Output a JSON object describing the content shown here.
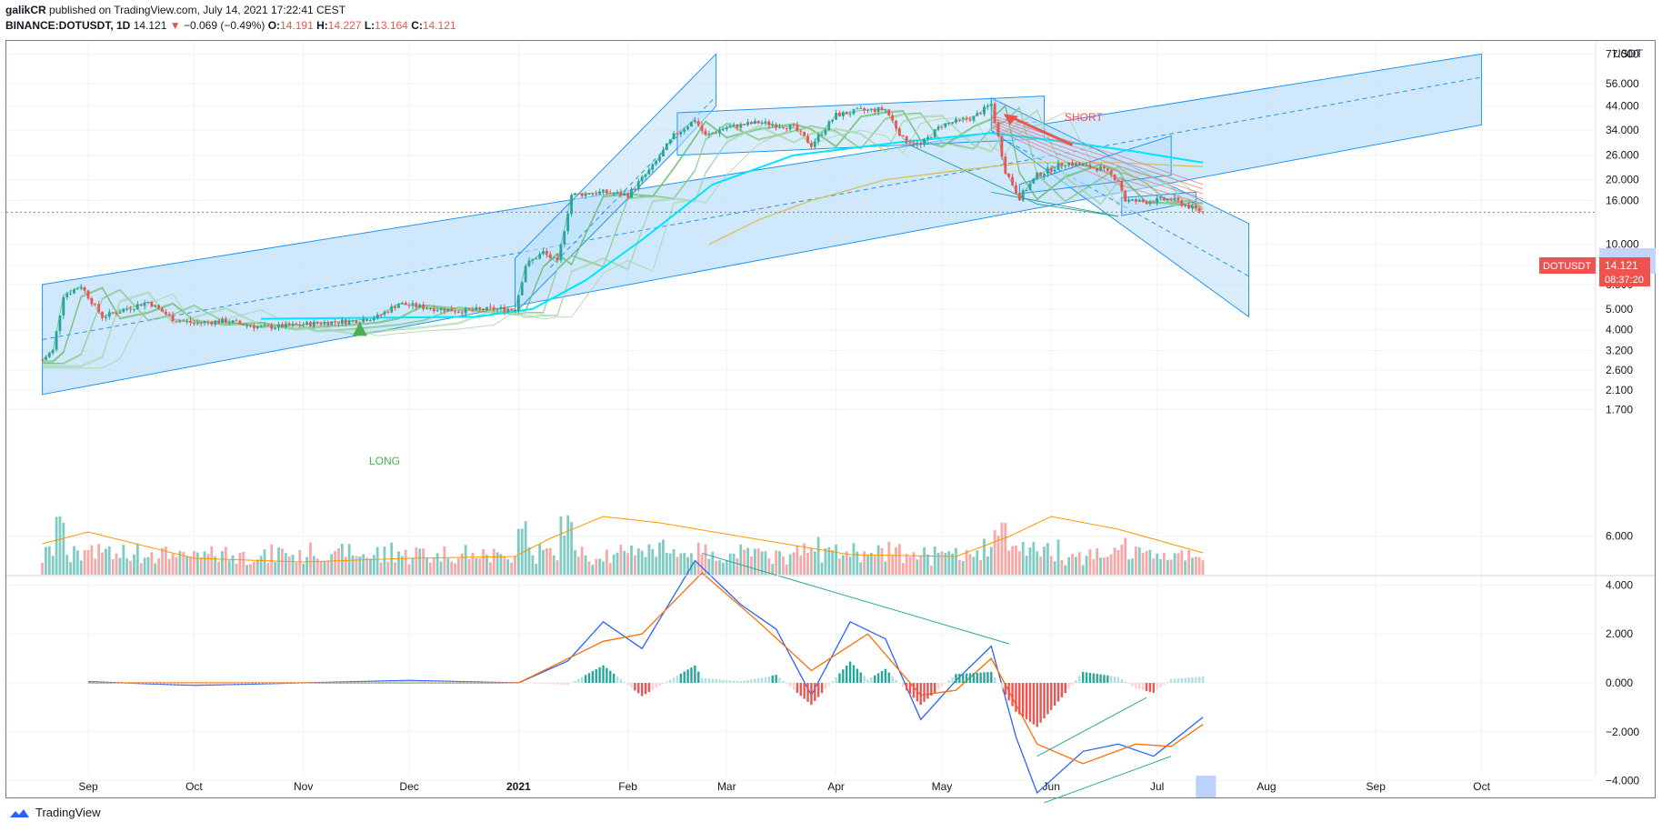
{
  "header": {
    "author": "galikCR",
    "published_text": "published on TradingView.com, July 14, 2021 17:22:41 CEST",
    "symbol": "BINANCE:DOTUSDT, 1D",
    "last": "14.121",
    "change": "−0.069 (−0.49%)",
    "o_label": "O:",
    "o": "14.191",
    "h_label": "H:",
    "h": "14.227",
    "l_label": "L:",
    "l": "13.164",
    "c_label": "C:",
    "c": "14.121"
  },
  "price_label": {
    "symbol": "DOTUSDT",
    "price": "14.121",
    "countdown": "08:37:20"
  },
  "annotations": {
    "long": "LONG",
    "short": "SHORT"
  },
  "footer": {
    "brand": "TradingView"
  },
  "colors": {
    "up": "#26a69a",
    "down": "#ef5350",
    "channel_fill": "#bbdefb",
    "channel_line": "#2196f3",
    "ema_cyan": "#00e5ff",
    "ma_yellow": "#d4c05a",
    "macd": "#2962ff",
    "signal": "#ff6d00",
    "volume_ma": "#ff9800"
  },
  "chart_data": [
    {
      "type": "candlestick",
      "title": "BINANCE:DOTUSDT, 1D",
      "y_unit": "USDT",
      "y_scale": "log",
      "ylim": [
        1.5,
        77
      ],
      "y_ticks": [
        "77.000",
        "56.000",
        "44.000",
        "34.000",
        "26.000",
        "20.000",
        "16.000",
        "10.000",
        "8.000",
        "6.500",
        "5.000",
        "4.000",
        "3.200",
        "2.600",
        "2.100",
        "1.700"
      ],
      "x_ticks": [
        "Sep",
        "Oct",
        "Nov",
        "Dec",
        "2021",
        "Feb",
        "Mar",
        "Apr",
        "May",
        "Jun",
        "Jul",
        "Aug",
        "Sep",
        "Oct"
      ],
      "close_path": [
        [
          "2020-08-19",
          2.9
        ],
        [
          "2020-08-22",
          3.2
        ],
        [
          "2020-08-25",
          5.8
        ],
        [
          "2020-08-30",
          6.4
        ],
        [
          "2020-09-05",
          4.6
        ],
        [
          "2020-09-10",
          4.9
        ],
        [
          "2020-09-18",
          5.4
        ],
        [
          "2020-09-25",
          4.5
        ],
        [
          "2020-10-01",
          4.3
        ],
        [
          "2020-10-10",
          4.4
        ],
        [
          "2020-10-20",
          4.1
        ],
        [
          "2020-10-30",
          4.2
        ],
        [
          "2020-11-05",
          4.3
        ],
        [
          "2020-11-15",
          4.4
        ],
        [
          "2020-11-22",
          4.6
        ],
        [
          "2020-11-28",
          5.3
        ],
        [
          "2020-12-05",
          5.1
        ],
        [
          "2020-12-15",
          4.9
        ],
        [
          "2020-12-25",
          5.0
        ],
        [
          "2020-12-31",
          5.0
        ],
        [
          "2021-01-03",
          8.0
        ],
        [
          "2021-01-08",
          9.2
        ],
        [
          "2021-01-12",
          8.2
        ],
        [
          "2021-01-16",
          17.0
        ],
        [
          "2021-01-25",
          17.5
        ],
        [
          "2021-02-01",
          17.0
        ],
        [
          "2021-02-08",
          23.0
        ],
        [
          "2021-02-14",
          32.0
        ],
        [
          "2021-02-20",
          38.0
        ],
        [
          "2021-02-23",
          32.0
        ],
        [
          "2021-03-01",
          35.0
        ],
        [
          "2021-03-10",
          37.0
        ],
        [
          "2021-03-20",
          35.0
        ],
        [
          "2021-03-25",
          29.0
        ],
        [
          "2021-04-01",
          40.0
        ],
        [
          "2021-04-08",
          42.0
        ],
        [
          "2021-04-15",
          42.5
        ],
        [
          "2021-04-20",
          31.0
        ],
        [
          "2021-04-25",
          29.0
        ],
        [
          "2021-05-01",
          36.0
        ],
        [
          "2021-05-10",
          39.0
        ],
        [
          "2021-05-15",
          45.0
        ],
        [
          "2021-05-19",
          22.0
        ],
        [
          "2021-05-23",
          16.5
        ],
        [
          "2021-05-28",
          21.0
        ],
        [
          "2021-06-05",
          24.0
        ],
        [
          "2021-06-15",
          22.5
        ],
        [
          "2021-06-20",
          20.0
        ],
        [
          "2021-06-22",
          16.0
        ],
        [
          "2021-06-28",
          15.8
        ],
        [
          "2021-07-05",
          16.3
        ],
        [
          "2021-07-10",
          15.0
        ],
        [
          "2021-07-14",
          14.121
        ]
      ]
    },
    {
      "type": "bar",
      "title": "Volume",
      "note": "volume histogram with moving average; no value scale printed"
    },
    {
      "type": "line",
      "title": "MACD",
      "ylim": [
        -5,
        6.5
      ],
      "y_ticks": [
        "6.000",
        "4.000",
        "2.000",
        "0.000",
        "−2.000",
        "−4.000"
      ],
      "series": [
        {
          "points": [
            [
              "2020-09-01",
              0.05
            ],
            [
              "2020-10-01",
              -0.1
            ],
            [
              "2020-11-01",
              0.0
            ],
            [
              "2020-12-01",
              0.1
            ],
            [
              "2021-01-01",
              0.0
            ],
            [
              "2021-01-15",
              0.9
            ],
            [
              "2021-01-25",
              2.5
            ],
            [
              "2021-02-05",
              1.4
            ],
            [
              "2021-02-20",
              5.0
            ],
            [
              "2021-03-05",
              3.2
            ],
            [
              "2021-03-15",
              2.2
            ],
            [
              "2021-03-25",
              -0.5
            ],
            [
              "2021-04-05",
              2.5
            ],
            [
              "2021-04-15",
              1.8
            ],
            [
              "2021-04-25",
              -1.5
            ],
            [
              "2021-05-05",
              0.1
            ],
            [
              "2021-05-15",
              1.5
            ],
            [
              "2021-05-22",
              -2.2
            ],
            [
              "2021-05-28",
              -4.5
            ],
            [
              "2021-06-10",
              -2.8
            ],
            [
              "2021-06-20",
              -2.5
            ],
            [
              "2021-06-30",
              -3.0
            ],
            [
              "2021-07-14",
              -1.4
            ]
          ]
        },
        {
          "points": [
            [
              "2020-09-01",
              0.0
            ],
            [
              "2020-11-01",
              0.0
            ],
            [
              "2021-01-01",
              0.0
            ],
            [
              "2021-01-25",
              1.7
            ],
            [
              "2021-02-05",
              2.0
            ],
            [
              "2021-02-22",
              4.5
            ],
            [
              "2021-03-10",
              2.5
            ],
            [
              "2021-03-25",
              0.5
            ],
            [
              "2021-04-10",
              2.0
            ],
            [
              "2021-04-25",
              -0.5
            ],
            [
              "2021-05-05",
              -0.3
            ],
            [
              "2021-05-15",
              1.0
            ],
            [
              "2021-05-28",
              -2.5
            ],
            [
              "2021-06-10",
              -3.3
            ],
            [
              "2021-06-25",
              -2.5
            ],
            [
              "2021-07-05",
              -2.6
            ],
            [
              "2021-07-14",
              -1.7
            ]
          ]
        }
      ]
    }
  ]
}
